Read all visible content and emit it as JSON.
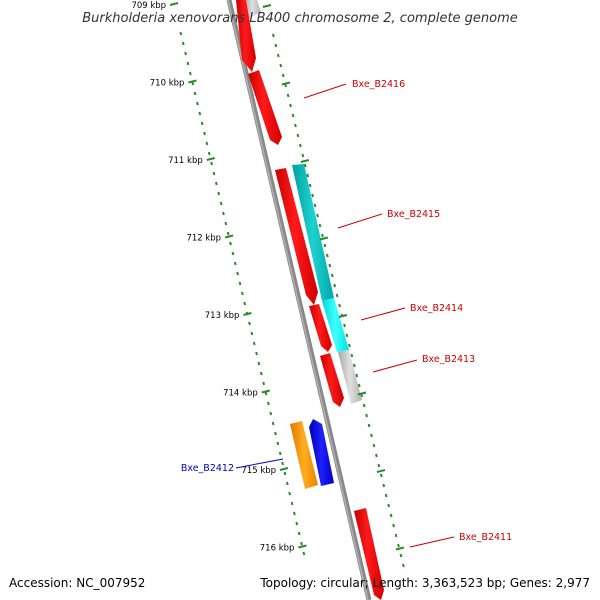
{
  "title": "Burkholderia xenovorans LB400 chromosome 2, complete genome",
  "footer": {
    "accession": "Accession: NC_007952",
    "summary": "Topology: circular; Length: 3,363,523 bp; Genes: 2,977"
  },
  "colors": {
    "backbone": "#888888",
    "tick": "#2a8a2a",
    "label_red": "#cc0000",
    "label_blue": "#0000cc"
  },
  "ticks": [
    {
      "label": "709 kbp",
      "kb": 709
    },
    {
      "label": "710 kbp",
      "kb": 710
    },
    {
      "label": "711 kbp",
      "kb": 711
    },
    {
      "label": "712 kbp",
      "kb": 712
    },
    {
      "label": "713 kbp",
      "kb": 713
    },
    {
      "label": "714 kbp",
      "kb": 714
    },
    {
      "label": "715 kbp",
      "kb": 715
    },
    {
      "label": "716 kbp",
      "kb": 716
    }
  ],
  "genes": [
    {
      "name": "Bxe_B2416",
      "color": "#cc0000"
    },
    {
      "name": "Bxe_B2415",
      "color": "#cc0000"
    },
    {
      "name": "Bxe_B2414",
      "color": "#cc0000"
    },
    {
      "name": "Bxe_B2413",
      "color": "#cc0000"
    },
    {
      "name": "Bxe_B2412",
      "color": "#0000cc"
    },
    {
      "name": "Bxe_B2411",
      "color": "#cc0000"
    }
  ]
}
